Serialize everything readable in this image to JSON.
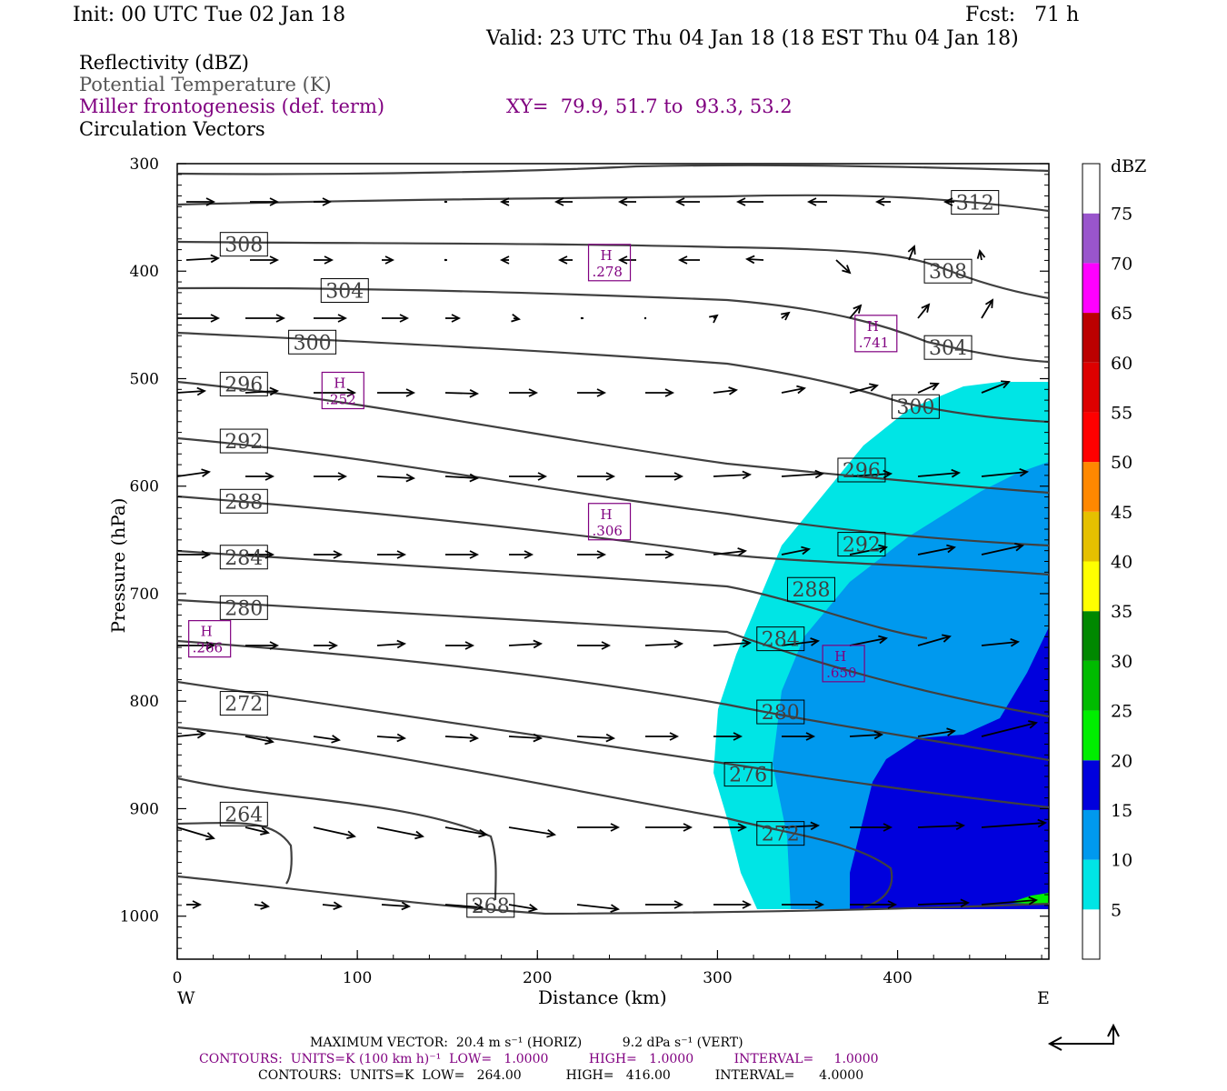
{
  "header": {
    "init": "Init: 00 UTC Tue 02 Jan 18",
    "fcst": "Fcst:   71 h",
    "valid": "Valid: 23 UTC Thu 04 Jan 18 (18 EST Thu 04 Jan 18)"
  },
  "fields": {
    "reflectivity": "Reflectivity (dBZ)",
    "theta": "Potential Temperature (K)",
    "frontogenesis": "Miller frontogenesis (def. term)",
    "xy": "XY=  79.9, 51.7 to  93.3, 53.2",
    "vectors": "Circulation Vectors"
  },
  "colors": {
    "purple": "#800080",
    "theta_line": "#404040",
    "dbz5": "#00e5e5",
    "dbz10": "#0099ee",
    "dbz15": "#0000dd",
    "dbz20": "#00ee00"
  },
  "chart_data": {
    "type": "cross-section",
    "xlabel": "Distance (km)",
    "ylabel": "Pressure (hPa)",
    "x_ticks": [
      0,
      100,
      200,
      300,
      400
    ],
    "y_ticks": [
      300,
      400,
      500,
      600,
      700,
      800,
      900,
      1000
    ],
    "xlim": [
      0,
      484
    ],
    "ylim": [
      1040,
      300
    ],
    "west_label": "W",
    "east_label": "E",
    "colorbar": {
      "unit": "dBZ",
      "levels": [
        5,
        10,
        15,
        20,
        25,
        30,
        35,
        40,
        45,
        50,
        55,
        60,
        65,
        70,
        75
      ],
      "colors": [
        "#ffffff",
        "#00e5e5",
        "#0099ee",
        "#0000dd",
        "#00ee00",
        "#00bb00",
        "#008800",
        "#ffff00",
        "#e5c000",
        "#ff8800",
        "#ff0000",
        "#dd0000",
        "#bb0000",
        "#ff00ff",
        "#9955cc",
        "#ffffff"
      ]
    },
    "theta_labels": [
      {
        "value": "312",
        "x": 443,
        "p": 336
      },
      {
        "value": "308",
        "x": 37,
        "p": 375
      },
      {
        "value": "308",
        "x": 428,
        "p": 400
      },
      {
        "value": "304",
        "x": 93,
        "p": 418
      },
      {
        "value": "304",
        "x": 428,
        "p": 471
      },
      {
        "value": "300",
        "x": 75,
        "p": 466
      },
      {
        "value": "300",
        "x": 410,
        "p": 526
      },
      {
        "value": "296",
        "x": 37,
        "p": 505
      },
      {
        "value": "296",
        "x": 380,
        "p": 585
      },
      {
        "value": "292",
        "x": 37,
        "p": 558
      },
      {
        "value": "292",
        "x": 380,
        "p": 654
      },
      {
        "value": "288",
        "x": 37,
        "p": 614
      },
      {
        "value": "288",
        "x": 352,
        "p": 696
      },
      {
        "value": "284",
        "x": 37,
        "p": 666
      },
      {
        "value": "284",
        "x": 335,
        "p": 742
      },
      {
        "value": "280",
        "x": 37,
        "p": 713
      },
      {
        "value": "280",
        "x": 335,
        "p": 810
      },
      {
        "value": "276",
        "x": 317,
        "p": 868
      },
      {
        "value": "272",
        "x": 37,
        "p": 802
      },
      {
        "value": "272",
        "x": 335,
        "p": 923
      },
      {
        "value": "268",
        "x": 174,
        "p": 990
      },
      {
        "value": "264",
        "x": 37,
        "p": 905
      }
    ],
    "frontogenesis_maxima": [
      {
        "label": "H",
        "value": ".278",
        "x": 240,
        "p": 392
      },
      {
        "label": "H",
        "value": ".741",
        "x": 388,
        "p": 458
      },
      {
        "label": "H",
        "value": ".252",
        "x": 92,
        "p": 511
      },
      {
        "label": "H",
        "value": ".306",
        "x": 240,
        "p": 633
      },
      {
        "label": "H",
        "value": ".266",
        "x": 18,
        "p": 742
      },
      {
        "label": "H",
        "value": ".650",
        "x": 370,
        "p": 765
      }
    ]
  },
  "footer": {
    "max_vector": "MAXIMUM VECTOR:  20.4 m s⁻¹ (HORIZ)          9.2 dPa s⁻¹ (VERT)",
    "contours_fronto": "CONTOURS:  UNITS=K (100 km h)⁻¹  LOW=   1.0000          HIGH=   1.0000          INTERVAL=     1.0000",
    "contours_theta": "CONTOURS:  UNITS=K  LOW=   264.00           HIGH=   416.00           INTERVAL=      4.0000"
  }
}
